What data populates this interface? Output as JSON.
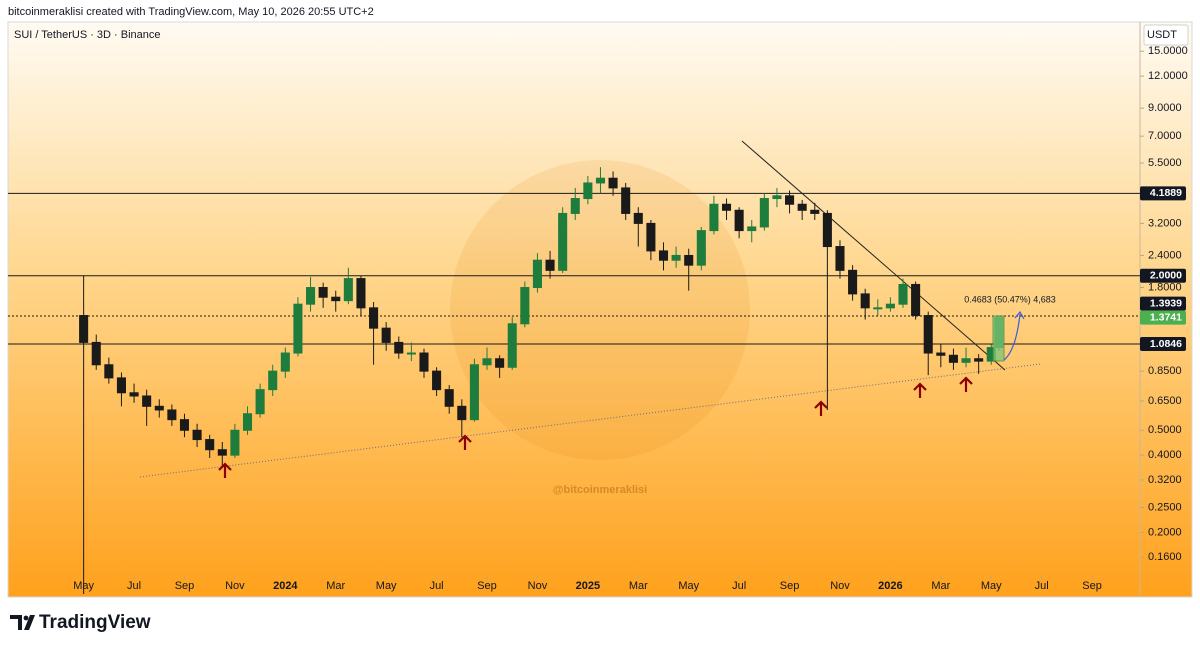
{
  "header": "bitcoinmeraklisi created with TradingView.com, May 10, 2026 20:55 UTC+2",
  "footer_brand": "TradingView",
  "chart_data": {
    "type": "candlestick",
    "symbol": "SUI / TetherUS · 3D · Binance",
    "currency": "USDT",
    "watermark": "@bitcoinmeraklisi",
    "measure_label": "0.4683 (50.47%) 4,683",
    "log_scale": true,
    "up_color": "#1e7d3c",
    "down_color": "#1a1a1a",
    "x": [
      0,
      0.5,
      1,
      1.5,
      2,
      2.5,
      3,
      3.5,
      4,
      4.5,
      5,
      5.5,
      6,
      6.5,
      7,
      7.5,
      8,
      8.5,
      9,
      9.5,
      10,
      10.5,
      11,
      11.5,
      12,
      12.5,
      13,
      13.5,
      14,
      14.5,
      15,
      15.5,
      16,
      16.5,
      17,
      17.5,
      18,
      18.5,
      19,
      19.5,
      20,
      20.5,
      21,
      21.5,
      22,
      22.5,
      23,
      23.5,
      24,
      24.5,
      25,
      25.5,
      26,
      26.5,
      27,
      27.5,
      28,
      28.5,
      29,
      29.5,
      30,
      30.5,
      31,
      31.5,
      32,
      32.5,
      33,
      33.5,
      34,
      34.5,
      35,
      35.5,
      36,
      36.3
    ],
    "open": [
      1.4,
      1.1,
      0.9,
      0.8,
      0.7,
      0.68,
      0.62,
      0.6,
      0.55,
      0.5,
      0.46,
      0.42,
      0.4,
      0.5,
      0.58,
      0.72,
      0.85,
      1.0,
      1.55,
      1.8,
      1.65,
      1.6,
      1.95,
      1.5,
      1.25,
      1.1,
      1.0,
      1.0,
      0.85,
      0.72,
      0.62,
      0.55,
      0.9,
      0.95,
      0.88,
      1.3,
      1.8,
      2.3,
      2.1,
      3.5,
      4.0,
      4.6,
      4.8,
      4.4,
      3.5,
      3.2,
      2.5,
      2.3,
      2.4,
      2.2,
      3.0,
      3.8,
      3.6,
      3.0,
      3.1,
      4.0,
      4.1,
      3.8,
      3.6,
      3.5,
      2.6,
      2.1,
      1.7,
      1.5,
      1.5,
      1.55,
      1.85,
      1.4,
      1.0,
      0.98,
      0.92,
      0.95,
      0.93,
      1.05
    ],
    "high": [
      2.0,
      1.18,
      0.96,
      0.84,
      0.76,
      0.72,
      0.66,
      0.63,
      0.58,
      0.53,
      0.48,
      0.45,
      0.53,
      0.62,
      0.76,
      0.9,
      1.05,
      1.65,
      1.98,
      1.88,
      1.75,
      2.15,
      2.0,
      1.58,
      1.32,
      1.16,
      1.1,
      1.04,
      0.88,
      0.75,
      0.66,
      0.95,
      1.05,
      0.98,
      1.38,
      1.9,
      2.45,
      2.5,
      3.7,
      4.4,
      4.9,
      5.3,
      5.1,
      4.6,
      3.7,
      3.3,
      2.7,
      2.6,
      2.55,
      3.1,
      4.1,
      4.0,
      3.7,
      3.3,
      4.2,
      4.4,
      4.3,
      3.95,
      3.85,
      3.6,
      2.75,
      2.2,
      1.78,
      1.62,
      1.65,
      1.95,
      1.9,
      1.45,
      1.08,
      1.04,
      1.05,
      0.99,
      1.08,
      1.4
    ],
    "low": [
      0.115,
      0.86,
      0.76,
      0.62,
      0.64,
      0.52,
      0.56,
      0.52,
      0.47,
      0.43,
      0.39,
      0.36,
      0.39,
      0.48,
      0.56,
      0.68,
      0.8,
      0.97,
      1.45,
      1.5,
      1.45,
      1.55,
      1.4,
      0.9,
      1.02,
      0.95,
      0.93,
      0.8,
      0.68,
      0.58,
      0.47,
      0.54,
      0.86,
      0.8,
      0.86,
      1.26,
      1.72,
      1.95,
      2.05,
      3.3,
      3.8,
      4.2,
      4.1,
      3.3,
      2.6,
      2.3,
      2.1,
      2.15,
      1.75,
      2.1,
      2.9,
      3.3,
      2.8,
      2.7,
      3.0,
      3.7,
      3.5,
      3.3,
      3.3,
      0.6,
      1.95,
      1.6,
      1.35,
      1.4,
      1.45,
      1.5,
      1.35,
      0.82,
      0.88,
      0.86,
      0.88,
      0.83,
      0.9,
      1.02
    ],
    "close": [
      1.1,
      0.9,
      0.8,
      0.7,
      0.68,
      0.62,
      0.6,
      0.55,
      0.5,
      0.46,
      0.42,
      0.4,
      0.5,
      0.58,
      0.72,
      0.85,
      1.0,
      1.55,
      1.8,
      1.65,
      1.6,
      1.95,
      1.5,
      1.25,
      1.1,
      1.0,
      1.0,
      0.85,
      0.72,
      0.62,
      0.55,
      0.9,
      0.95,
      0.88,
      1.3,
      1.8,
      2.3,
      2.1,
      3.5,
      4.0,
      4.6,
      4.8,
      4.4,
      3.5,
      3.2,
      2.5,
      2.3,
      2.4,
      2.2,
      3.0,
      3.8,
      3.6,
      3.0,
      3.1,
      4.0,
      4.1,
      3.8,
      3.6,
      3.5,
      2.6,
      2.1,
      1.7,
      1.5,
      1.5,
      1.55,
      1.85,
      1.4,
      1.0,
      0.98,
      0.92,
      0.95,
      0.93,
      1.05,
      1.3741
    ],
    "xlim": [
      -3.0,
      41.9
    ],
    "xticks": [
      {
        "value": 0,
        "label": "May"
      },
      {
        "value": 2,
        "label": "Jul"
      },
      {
        "value": 4,
        "label": "Sep"
      },
      {
        "value": 6,
        "label": "Nov"
      },
      {
        "value": 8,
        "label": "2024"
      },
      {
        "value": 10,
        "label": "Mar"
      },
      {
        "value": 12,
        "label": "May"
      },
      {
        "value": 14,
        "label": "Jul"
      },
      {
        "value": 16,
        "label": "Sep"
      },
      {
        "value": 18,
        "label": "Nov"
      },
      {
        "value": 20,
        "label": "2025"
      },
      {
        "value": 22,
        "label": "Mar"
      },
      {
        "value": 24,
        "label": "May"
      },
      {
        "value": 26,
        "label": "Jul"
      },
      {
        "value": 28,
        "label": "Sep"
      },
      {
        "value": 30,
        "label": "Nov"
      },
      {
        "value": 32,
        "label": "2026"
      },
      {
        "value": 34,
        "label": "Mar"
      },
      {
        "value": 36,
        "label": "May"
      },
      {
        "value": 38,
        "label": "Jul"
      },
      {
        "value": 40,
        "label": "Sep"
      }
    ],
    "ylim": [
      0.112,
      19.5
    ],
    "yticks": [
      {
        "value": 0.16,
        "label": "0.1600"
      },
      {
        "value": 0.2,
        "label": "0.2000"
      },
      {
        "value": 0.25,
        "label": "0.2500"
      },
      {
        "value": 0.32,
        "label": "0.3200"
      },
      {
        "value": 0.4,
        "label": "0.4000"
      },
      {
        "value": 0.5,
        "label": "0.5000"
      },
      {
        "value": 0.65,
        "label": "0.6500"
      },
      {
        "value": 0.85,
        "label": "0.8500"
      },
      {
        "value": 1.8,
        "label": "1.8000"
      },
      {
        "value": 2.4,
        "label": "2.4000"
      },
      {
        "value": 3.2,
        "label": "3.2000"
      },
      {
        "value": 5.5,
        "label": "5.5000"
      },
      {
        "value": 7,
        "label": "7.0000"
      },
      {
        "value": 9,
        "label": "9.0000"
      },
      {
        "value": 12,
        "label": "12.0000"
      },
      {
        "value": 15,
        "label": "15.0000"
      }
    ],
    "price_levels": [
      {
        "value": 4.1889,
        "style": "solid"
      },
      {
        "value": 2,
        "label": "2.0000",
        "style": "solid"
      },
      {
        "value": 1.3939,
        "style": "dotted"
      },
      {
        "value": 1.0846,
        "style": "solid"
      }
    ],
    "last_price_color": "#4caf50"
  }
}
